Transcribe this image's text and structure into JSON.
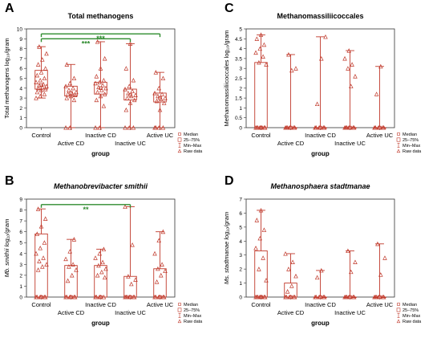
{
  "figure": {
    "group_label": "group",
    "legend_items": [
      "Median",
      "25–75%",
      "Min–Max",
      "Raw data"
    ]
  },
  "colors": {
    "box": "#c0392b",
    "point": "#c0392b",
    "significance": "#2e8b2e",
    "axis": "#333333",
    "gridline": "#cccccc"
  },
  "chart_data": [
    {
      "panel_letter": "A",
      "type": "box",
      "title": "Total methanogens",
      "title_italic": false,
      "ylabel": "Total methanogens  log₁₀/gram",
      "xlabel": "group",
      "categories": [
        "Control",
        "Active CD",
        "Inactive CD",
        "Inactive UC",
        "Active UC"
      ],
      "ylim": [
        0,
        10
      ],
      "yticks": [
        0,
        1,
        2,
        3,
        4,
        5,
        6,
        7,
        8,
        9,
        10
      ],
      "boxes": [
        {
          "min": 3.0,
          "q1": 3.9,
          "median": 4.3,
          "q3": 5.8,
          "max": 8.2
        },
        {
          "min": 0.0,
          "q1": 3.2,
          "median": 3.5,
          "q3": 4.2,
          "max": 6.4
        },
        {
          "min": 0.0,
          "q1": 3.4,
          "median": 4.0,
          "q3": 4.6,
          "max": 8.7
        },
        {
          "min": 0.0,
          "q1": 2.8,
          "median": 3.3,
          "q3": 3.9,
          "max": 8.5
        },
        {
          "min": 0.0,
          "q1": 2.6,
          "median": 3.0,
          "q3": 3.5,
          "max": 5.6
        }
      ],
      "raw": [
        [
          3.0,
          3.2,
          3.4,
          3.6,
          3.8,
          3.9,
          4.0,
          4.1,
          4.2,
          4.3,
          4.4,
          4.6,
          4.8,
          5.0,
          5.3,
          5.6,
          6.0,
          6.4,
          6.9,
          7.5,
          8.2
        ],
        [
          0.0,
          0.0,
          2.8,
          3.0,
          3.2,
          3.3,
          3.4,
          3.5,
          3.6,
          3.8,
          4.0,
          4.2,
          4.5,
          5.0,
          6.4
        ],
        [
          0.0,
          0.0,
          2.2,
          2.8,
          3.2,
          3.4,
          3.6,
          3.8,
          4.0,
          4.1,
          4.3,
          4.5,
          4.6,
          4.8,
          5.2,
          6.0,
          7.0,
          8.7
        ],
        [
          0.0,
          0.0,
          0.0,
          1.8,
          2.5,
          2.8,
          3.0,
          3.2,
          3.3,
          3.5,
          3.7,
          3.9,
          4.2,
          4.8,
          6.0,
          8.5
        ],
        [
          0.0,
          0.0,
          0.0,
          0.0,
          1.8,
          2.5,
          2.7,
          2.9,
          3.0,
          3.2,
          3.4,
          3.5,
          4.0,
          5.0,
          5.6
        ]
      ],
      "significance": [
        {
          "from": 0,
          "to": 4,
          "label": "***",
          "y": 9.5
        },
        {
          "from": 0,
          "to": 3,
          "label": "***",
          "y": 9.0
        }
      ]
    },
    {
      "panel_letter": "C",
      "type": "box",
      "title": "Methanomassiliicoccales",
      "title_italic": false,
      "ylabel": "Methanomassiliicoccales  log₁₀/gram",
      "xlabel": "group",
      "categories": [
        "Control",
        "Active CD",
        "Inactive CD",
        "Inactive UC",
        "Active UC"
      ],
      "ylim": [
        0,
        5
      ],
      "yticks": [
        0,
        0.5,
        1,
        1.5,
        2,
        2.5,
        3,
        3.5,
        4,
        4.5,
        5
      ],
      "boxes": [
        {
          "min": 0.0,
          "q1": 0.0,
          "median": 0.0,
          "q3": 3.3,
          "max": 4.7
        },
        {
          "min": 0.0,
          "q1": 0.0,
          "median": 0.0,
          "q3": 0.0,
          "max": 3.7
        },
        {
          "min": 0.0,
          "q1": 0.0,
          "median": 0.0,
          "q3": 0.0,
          "max": 4.6
        },
        {
          "min": 0.0,
          "q1": 0.0,
          "median": 0.0,
          "q3": 0.0,
          "max": 3.9
        },
        {
          "min": 0.0,
          "q1": 0.0,
          "median": 0.0,
          "q3": 0.0,
          "max": 3.1
        }
      ],
      "raw": [
        [
          0.0,
          0.0,
          0.0,
          0.0,
          0.0,
          0.0,
          0.0,
          0.0,
          3.2,
          3.3,
          3.6,
          3.8,
          4.0,
          4.2,
          4.5,
          4.7
        ],
        [
          0.0,
          0.0,
          0.0,
          0.0,
          0.0,
          0.0,
          0.0,
          2.9,
          3.0,
          3.7
        ],
        [
          0.0,
          0.0,
          0.0,
          0.0,
          0.0,
          0.0,
          1.2,
          3.5,
          4.6
        ],
        [
          0.0,
          0.0,
          0.0,
          0.0,
          0.0,
          0.0,
          0.0,
          2.1,
          2.6,
          3.0,
          3.2,
          3.5,
          3.9
        ],
        [
          0.0,
          0.0,
          0.0,
          0.0,
          0.0,
          0.0,
          1.7,
          3.1
        ]
      ],
      "significance": []
    },
    {
      "panel_letter": "B",
      "type": "box",
      "title": "Methanobrevibacter  smithii",
      "title_italic": true,
      "ylabel": "Mb. smithii log₁₀/gram",
      "xlabel": "group",
      "categories": [
        "Control",
        "Active CD",
        "Inactive CD",
        "Inactive UC",
        "Active UC"
      ],
      "ylim": [
        0,
        9
      ],
      "yticks": [
        0,
        1,
        2,
        3,
        4,
        5,
        6,
        7,
        8,
        9
      ],
      "boxes": [
        {
          "min": 0.0,
          "q1": 0.0,
          "median": 0.0,
          "q3": 5.8,
          "max": 8.1
        },
        {
          "min": 0.0,
          "q1": 0.0,
          "median": 0.0,
          "q3": 2.9,
          "max": 5.3
        },
        {
          "min": 0.0,
          "q1": 0.0,
          "median": 0.0,
          "q3": 2.9,
          "max": 4.4
        },
        {
          "min": 0.0,
          "q1": 0.0,
          "median": 0.0,
          "q3": 1.9,
          "max": 8.3
        },
        {
          "min": 0.0,
          "q1": 0.0,
          "median": 0.0,
          "q3": 2.6,
          "max": 6.0
        }
      ],
      "raw": [
        [
          0.0,
          0.0,
          0.0,
          0.0,
          0.0,
          0.0,
          2.5,
          2.8,
          3.0,
          3.3,
          3.6,
          4.0,
          4.5,
          5.0,
          5.8,
          6.5,
          7.2,
          8.1
        ],
        [
          0.0,
          0.0,
          0.0,
          0.0,
          0.0,
          0.0,
          1.5,
          2.0,
          2.5,
          2.8,
          3.0,
          3.5,
          4.2,
          5.3
        ],
        [
          0.0,
          0.0,
          0.0,
          0.0,
          0.0,
          1.8,
          2.0,
          2.3,
          2.6,
          2.9,
          3.2,
          3.6,
          4.0,
          4.4
        ],
        [
          0.0,
          0.0,
          0.0,
          0.0,
          0.0,
          0.0,
          0.0,
          1.2,
          1.6,
          1.9,
          4.8,
          8.3
        ],
        [
          0.0,
          0.0,
          0.0,
          0.0,
          0.0,
          0.0,
          1.4,
          2.0,
          2.4,
          2.6,
          3.0,
          4.0,
          5.2,
          6.0
        ]
      ],
      "significance": [
        {
          "from": 0,
          "to": 3,
          "label": "**",
          "y": 8.5
        }
      ]
    },
    {
      "panel_letter": "D",
      "type": "box",
      "title": "Methanosphaera  stadtmanae",
      "title_italic": true,
      "ylabel": "Ms. stadtmanae  log₁₀/gram",
      "xlabel": "group",
      "categories": [
        "Control",
        "Active CD",
        "Inactive CD",
        "Inactive UC",
        "Active UC"
      ],
      "ylim": [
        0,
        7
      ],
      "yticks": [
        0,
        1,
        2,
        3,
        4,
        5,
        6,
        7
      ],
      "boxes": [
        {
          "min": 0.0,
          "q1": 0.0,
          "median": 0.0,
          "q3": 3.3,
          "max": 6.2
        },
        {
          "min": 0.0,
          "q1": 0.0,
          "median": 0.0,
          "q3": 1.0,
          "max": 3.1
        },
        {
          "min": 0.0,
          "q1": 0.0,
          "median": 0.0,
          "q3": 0.0,
          "max": 1.9
        },
        {
          "min": 0.0,
          "q1": 0.0,
          "median": 0.0,
          "q3": 0.0,
          "max": 3.3
        },
        {
          "min": 0.0,
          "q1": 0.0,
          "median": 0.0,
          "q3": 0.0,
          "max": 3.8
        }
      ],
      "raw": [
        [
          0.0,
          0.0,
          0.0,
          0.0,
          0.0,
          0.0,
          0.0,
          0.0,
          1.2,
          2.0,
          2.8,
          3.5,
          4.2,
          4.8,
          5.5,
          6.2
        ],
        [
          0.0,
          0.0,
          0.0,
          0.0,
          0.0,
          0.0,
          0.4,
          0.8,
          1.5,
          2.0,
          2.5,
          3.1
        ],
        [
          0.0,
          0.0,
          0.0,
          0.0,
          0.0,
          0.0,
          1.4,
          1.9
        ],
        [
          0.0,
          0.0,
          0.0,
          0.0,
          0.0,
          0.0,
          0.0,
          1.8,
          2.5,
          3.3
        ],
        [
          0.0,
          0.0,
          0.0,
          0.0,
          0.0,
          0.0,
          0.0,
          1.6,
          2.8,
          3.8
        ]
      ],
      "significance": []
    }
  ]
}
